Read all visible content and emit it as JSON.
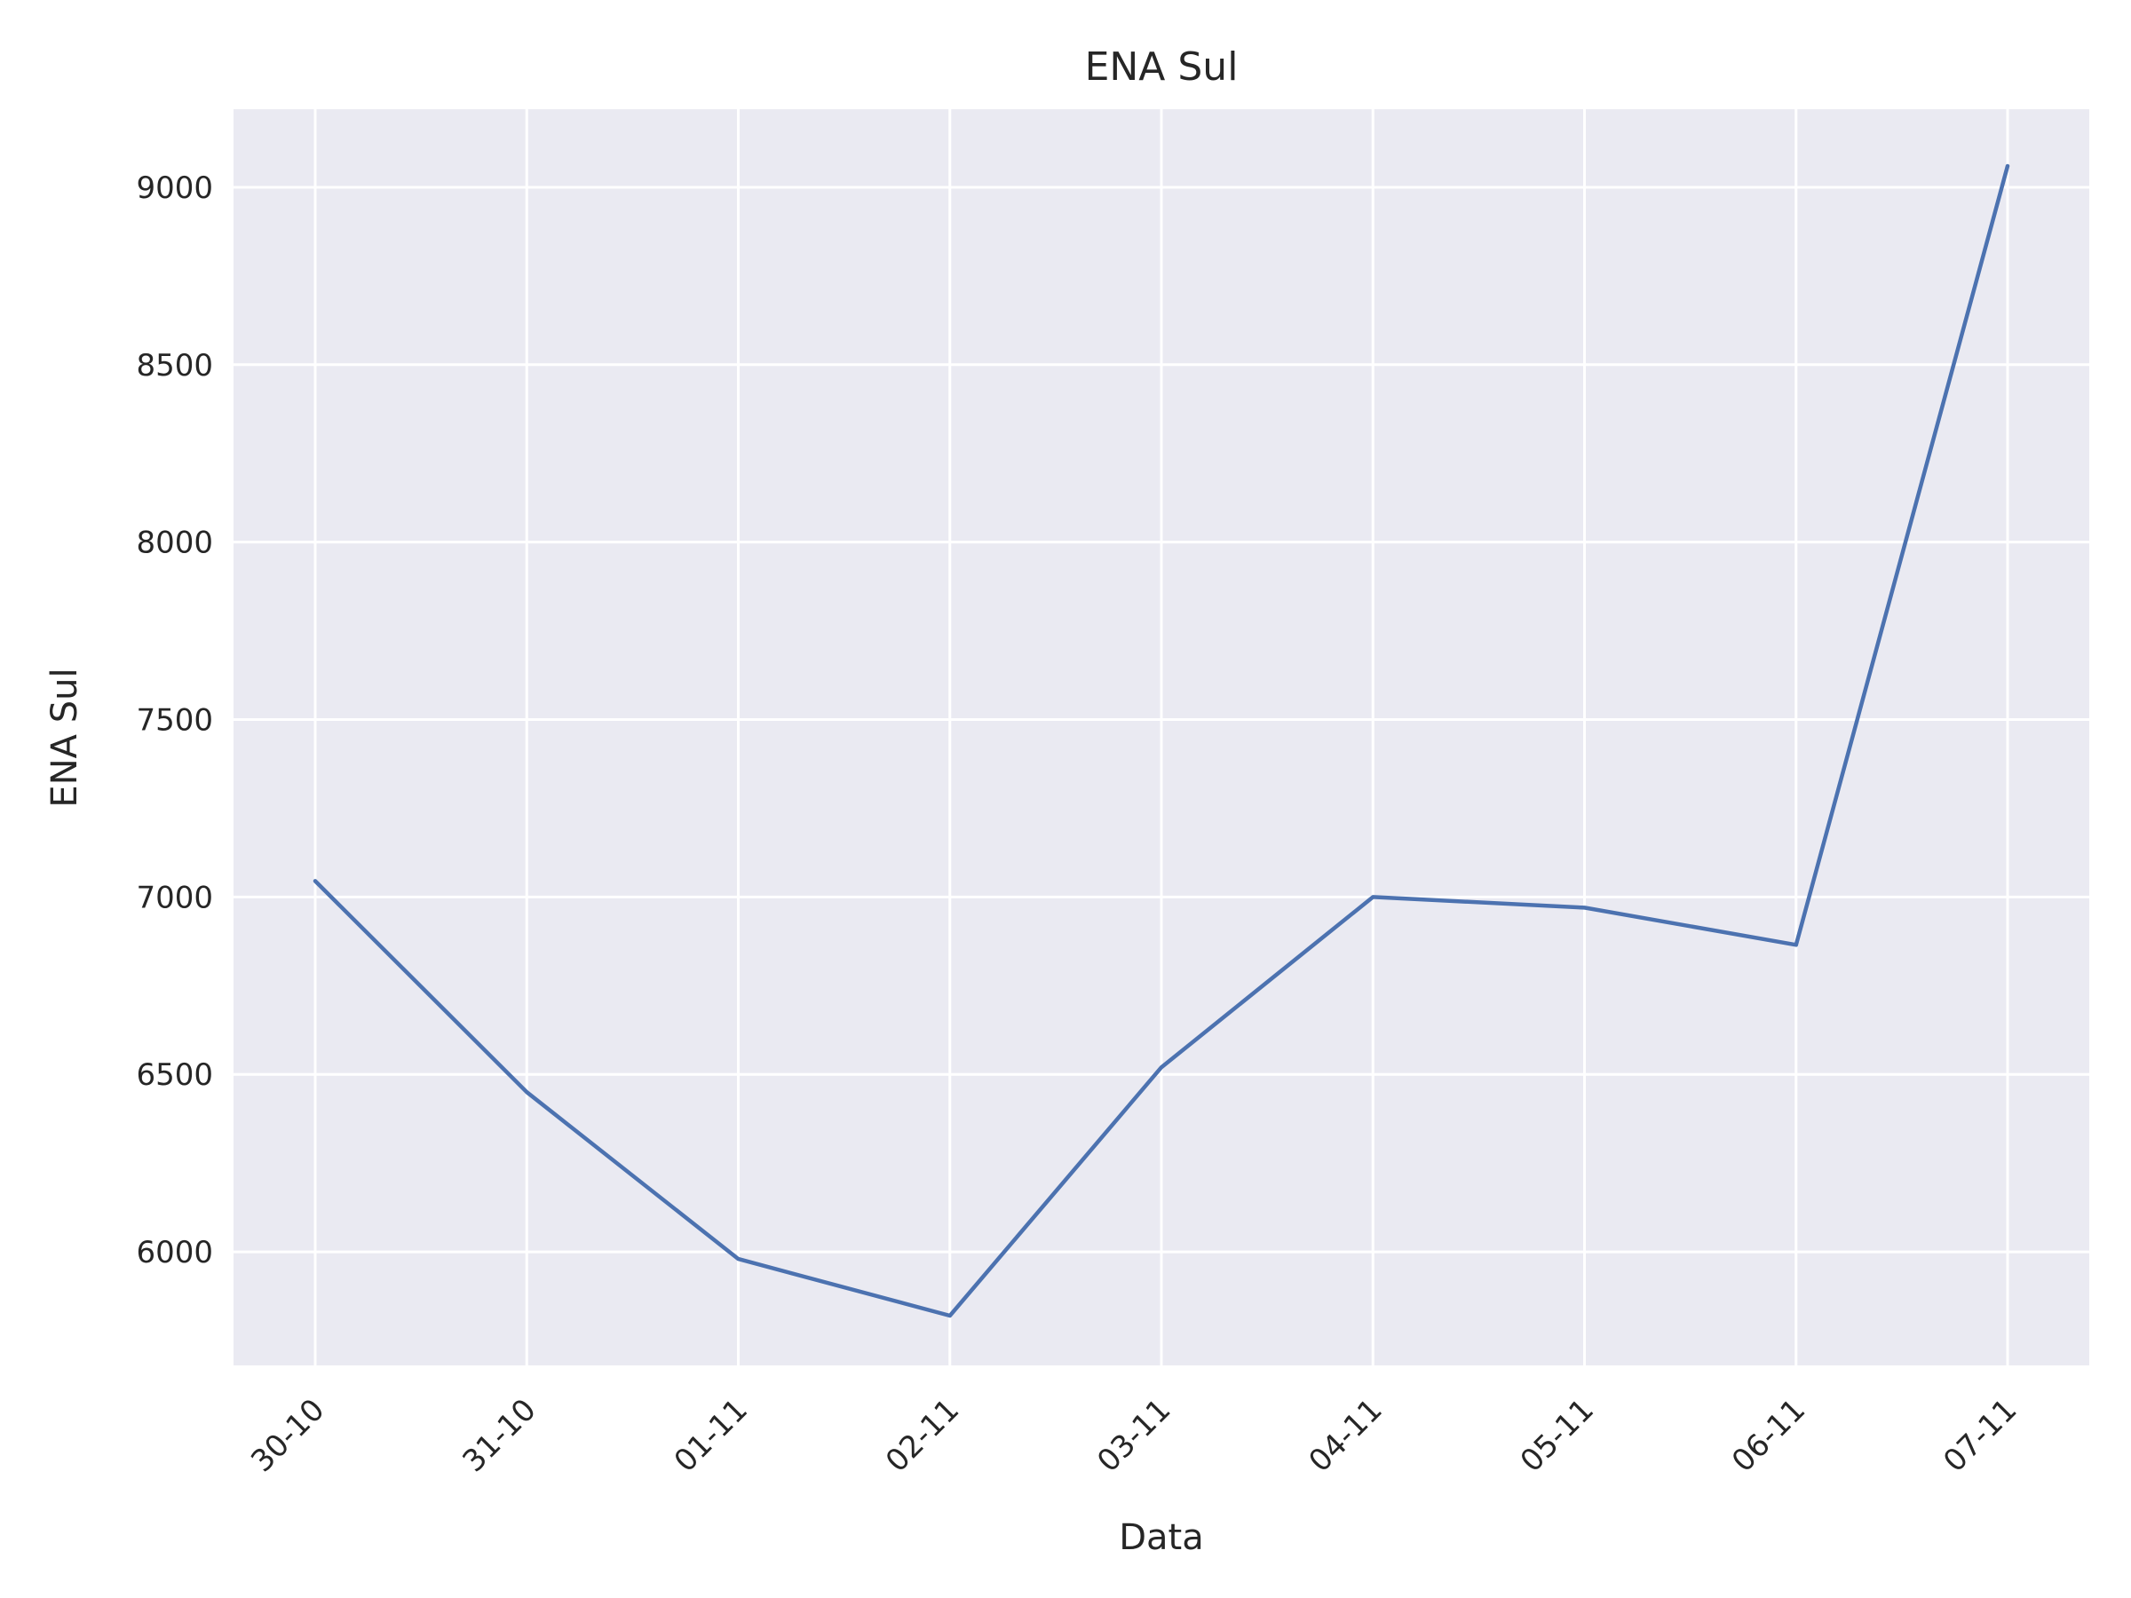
{
  "chart_data": {
    "type": "line",
    "title": "ENA Sul",
    "xlabel": "Data",
    "ylabel": "ENA Sul",
    "categories": [
      "30-10",
      "31-10",
      "01-11",
      "02-11",
      "03-11",
      "04-11",
      "05-11",
      "06-11",
      "07-11"
    ],
    "series": [
      {
        "values": [
          7045,
          6450,
          5980,
          5820,
          6520,
          7000,
          6970,
          6865,
          9060
        ]
      }
    ],
    "ylim": [
      5680,
      9220
    ],
    "yticks": [
      "6000",
      "6500",
      "7000",
      "7500",
      "8000",
      "8500",
      "9000"
    ],
    "x_tick_rotation": "45 degrees",
    "grid": true,
    "legend": "none",
    "colors": {
      "plot_background": "#eaeaf2",
      "grid": "#ffffff",
      "line": "#4c72b0",
      "text": "#262626"
    }
  }
}
